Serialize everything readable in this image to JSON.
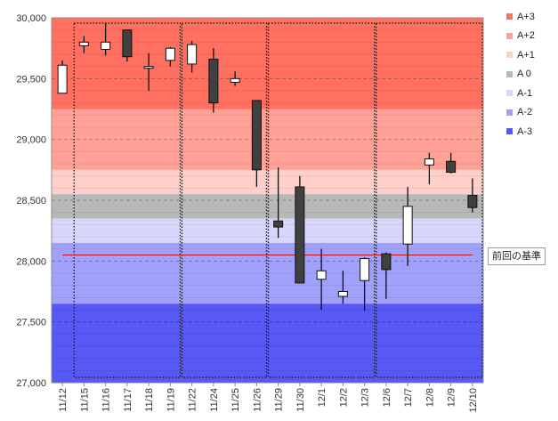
{
  "chart_data": {
    "type": "candlestick",
    "dates": [
      "11/12",
      "11/15",
      "11/16",
      "11/17",
      "11/18",
      "11/19",
      "11/22",
      "11/24",
      "11/25",
      "11/26",
      "11/29",
      "11/30",
      "12/1",
      "12/2",
      "12/3",
      "12/6",
      "12/7",
      "12/8",
      "12/9",
      "12/10"
    ],
    "ohlc": [
      {
        "open": 29380,
        "high": 29650,
        "low": 29380,
        "close": 29610
      },
      {
        "open": 29770,
        "high": 29850,
        "low": 29710,
        "close": 29800
      },
      {
        "open": 29740,
        "high": 29960,
        "low": 29690,
        "close": 29800
      },
      {
        "open": 29900,
        "high": 29900,
        "low": 29640,
        "close": 29680
      },
      {
        "open": 29600,
        "high": 29710,
        "low": 29400,
        "close": 29600
      },
      {
        "open": 29650,
        "high": 29760,
        "low": 29600,
        "close": 29750
      },
      {
        "open": 29620,
        "high": 29810,
        "low": 29550,
        "close": 29780
      },
      {
        "open": 29660,
        "high": 29750,
        "low": 29220,
        "close": 29300
      },
      {
        "open": 29470,
        "high": 29560,
        "low": 29440,
        "close": 29500
      },
      {
        "open": 29320,
        "high": 29320,
        "low": 28610,
        "close": 28750
      },
      {
        "open": 28330,
        "high": 28770,
        "low": 28190,
        "close": 28280
      },
      {
        "open": 28610,
        "high": 28700,
        "low": 27820,
        "close": 27820
      },
      {
        "open": 27850,
        "high": 28100,
        "low": 27600,
        "close": 27920
      },
      {
        "open": 27710,
        "high": 27920,
        "low": 27650,
        "close": 27750
      },
      {
        "open": 27840,
        "high": 28030,
        "low": 27590,
        "close": 28020
      },
      {
        "open": 28060,
        "high": 28070,
        "low": 27690,
        "close": 27930
      },
      {
        "open": 28140,
        "high": 28610,
        "low": 27960,
        "close": 28450
      },
      {
        "open": 28790,
        "high": 28890,
        "low": 28630,
        "close": 28840
      },
      {
        "open": 28820,
        "high": 28890,
        "low": 28720,
        "close": 28730
      },
      {
        "open": 28540,
        "high": 28680,
        "low": 28400,
        "close": 28440
      }
    ],
    "ylim": [
      27000,
      30000
    ],
    "yticks": [
      "27,000",
      "27,500",
      "28,000",
      "28,500",
      "29,000",
      "29,500",
      "30,000"
    ],
    "reference_line": 28050,
    "bands": [
      {
        "name": "A+3",
        "from": 29250,
        "to": 30000,
        "color": "#ff7060"
      },
      {
        "name": "A+2",
        "from": 28750,
        "to": 29250,
        "color": "#ffa196"
      },
      {
        "name": "A+1",
        "from": 28550,
        "to": 28750,
        "color": "#ffd0cb"
      },
      {
        "name": "A 0",
        "from": 28350,
        "to": 28550,
        "color": "#b8b8b8"
      },
      {
        "name": "A-1",
        "from": 28150,
        "to": 28350,
        "color": "#d7d7fc"
      },
      {
        "name": "A-2",
        "from": 27650,
        "to": 28150,
        "color": "#a0a1fb"
      },
      {
        "name": "A-3",
        "from": 27000,
        "to": 27650,
        "color": "#5858f4"
      }
    ],
    "week_groups": [
      [
        1,
        5
      ],
      [
        6,
        9
      ],
      [
        10,
        14
      ],
      [
        15,
        19
      ]
    ],
    "legend_position": "right",
    "grid": true
  },
  "legend": [
    {
      "label": "A+3",
      "color": "#ff7060"
    },
    {
      "label": "A+2",
      "color": "#ffa196"
    },
    {
      "label": "A+1",
      "color": "#ffd0cb"
    },
    {
      "label": "A 0",
      "color": "#b8b8b8"
    },
    {
      "label": "A-1",
      "color": "#d7d7fc"
    },
    {
      "label": "A-2",
      "color": "#a0a1fb"
    },
    {
      "label": "A-3",
      "color": "#5858f4"
    }
  ],
  "annotation": {
    "reference_label": "前回の基準"
  }
}
